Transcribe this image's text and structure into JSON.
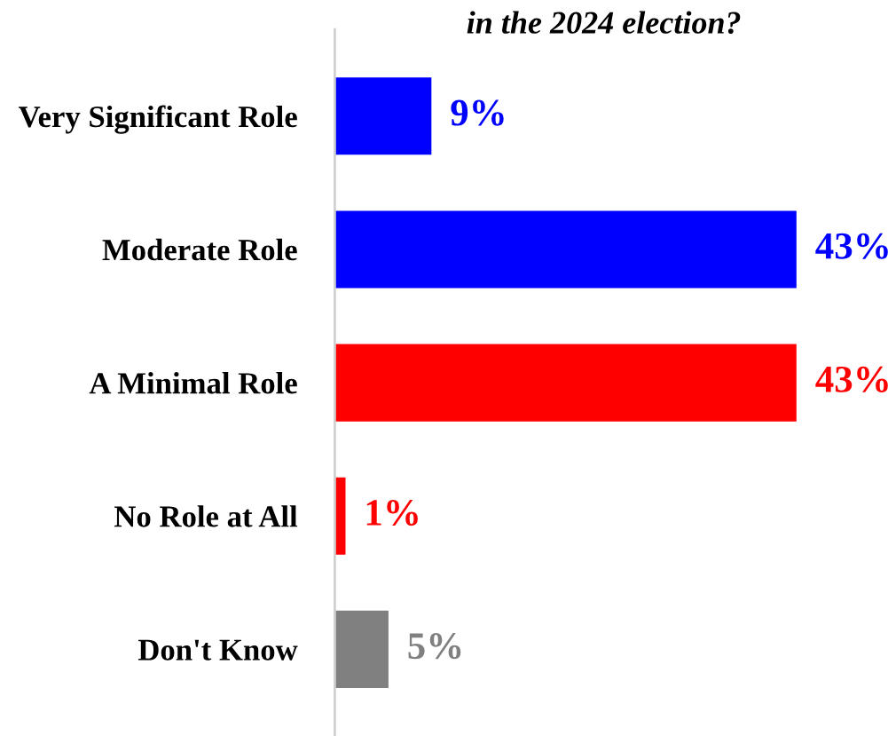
{
  "chart_data": {
    "type": "bar",
    "orientation": "horizontal",
    "title": "in the 2024 election?",
    "categories": [
      "Very Significant Role",
      "Moderate Role",
      "A Minimal Role",
      "No Role at All",
      "Don't Know"
    ],
    "values": [
      9,
      43,
      43,
      1,
      5
    ],
    "colors": [
      "#0000ff",
      "#0000ff",
      "#ff0000",
      "#ff0000",
      "#808080"
    ],
    "value_labels": [
      "9%",
      "43%",
      "43%",
      "1%",
      "5%"
    ],
    "grid": false,
    "legend": false
  }
}
